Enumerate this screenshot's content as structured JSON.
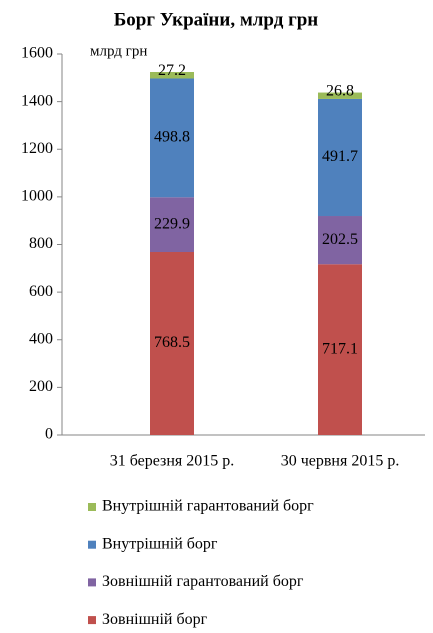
{
  "chart_data": {
    "type": "stacked_bar",
    "title": "Борг України, млрд грн",
    "ylabel": "млрд грн",
    "categories": [
      "31 березня 2015 р.",
      "30 червня 2015 р."
    ],
    "series": [
      {
        "name": "Зовнішній борг",
        "color": "#c0504d",
        "values": [
          768.5,
          717.1
        ]
      },
      {
        "name": "Зовнішній гарантований борг",
        "color": "#8064a2",
        "values": [
          229.9,
          202.5
        ]
      },
      {
        "name": "Внутрішній борг",
        "color": "#4f81bd",
        "values": [
          498.8,
          491.7
        ]
      },
      {
        "name": "Внутрішній гарантований борг",
        "color": "#9bbb59",
        "values": [
          27.2,
          26.8
        ]
      }
    ],
    "ylim": [
      0,
      1600
    ],
    "yticks": [
      0,
      200,
      400,
      600,
      800,
      1000,
      1200,
      1400,
      1600
    ],
    "grid": false,
    "legend": "bottom"
  }
}
